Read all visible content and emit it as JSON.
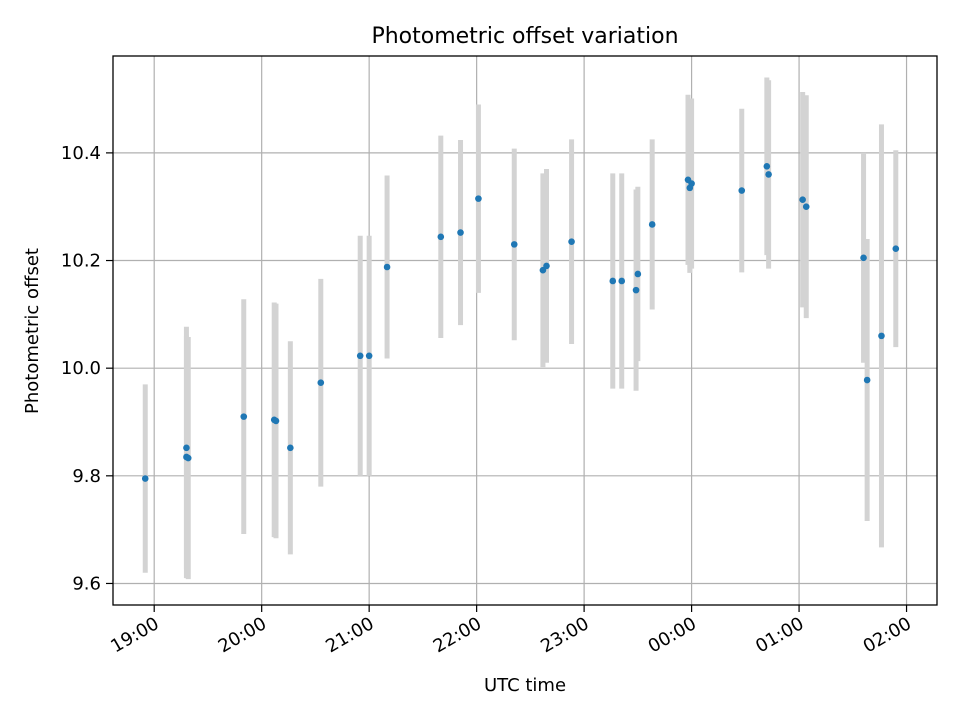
{
  "chart_data": {
    "type": "scatter",
    "title": "Photometric offset variation",
    "xlabel": "UTC time",
    "ylabel": "Photometric offset",
    "xlim": [
      "18:37",
      "02:17"
    ],
    "ylim": [
      9.56,
      10.58
    ],
    "grid": true,
    "x_ticks": [
      "19:00",
      "20:00",
      "21:00",
      "22:00",
      "23:00",
      "00:00",
      "01:00",
      "02:00"
    ],
    "y_ticks": [
      "9.6",
      "9.8",
      "10.0",
      "10.2",
      "10.4"
    ],
    "colors": {
      "marker": "#1f77b4",
      "errorbar": "#d3d3d3",
      "grid": "#b0b0b0"
    },
    "series": [
      {
        "points": [
          {
            "x": "18:55",
            "y": 9.795,
            "err": 0.175
          },
          {
            "x": "19:18",
            "y": 9.852,
            "err": 0.225
          },
          {
            "x": "19:18",
            "y": 9.835,
            "err": 0.225
          },
          {
            "x": "19:19",
            "y": 9.833,
            "err": 0.225
          },
          {
            "x": "19:50",
            "y": 9.91,
            "err": 0.218
          },
          {
            "x": "20:07",
            "y": 9.904,
            "err": 0.218
          },
          {
            "x": "20:08",
            "y": 9.902,
            "err": 0.218
          },
          {
            "x": "20:16",
            "y": 9.852,
            "err": 0.198
          },
          {
            "x": "20:33",
            "y": 9.973,
            "err": 0.193
          },
          {
            "x": "20:55",
            "y": 10.023,
            "err": 0.223
          },
          {
            "x": "21:00",
            "y": 10.023,
            "err": 0.223
          },
          {
            "x": "21:10",
            "y": 10.188,
            "err": 0.17
          },
          {
            "x": "21:40",
            "y": 10.244,
            "err": 0.188
          },
          {
            "x": "21:51",
            "y": 10.252,
            "err": 0.172
          },
          {
            "x": "22:01",
            "y": 10.315,
            "err": 0.175
          },
          {
            "x": "22:21",
            "y": 10.23,
            "err": 0.178
          },
          {
            "x": "22:37",
            "y": 10.182,
            "err": 0.18
          },
          {
            "x": "22:39",
            "y": 10.19,
            "err": 0.18
          },
          {
            "x": "22:53",
            "y": 10.235,
            "err": 0.19
          },
          {
            "x": "23:16",
            "y": 10.162,
            "err": 0.2
          },
          {
            "x": "23:21",
            "y": 10.162,
            "err": 0.2
          },
          {
            "x": "23:29",
            "y": 10.145,
            "err": 0.187
          },
          {
            "x": "23:30",
            "y": 10.175,
            "err": 0.162
          },
          {
            "x": "23:38",
            "y": 10.267,
            "err": 0.158
          },
          {
            "x": "23:58",
            "y": 10.35,
            "err": 0.158
          },
          {
            "x": "23:59",
            "y": 10.335,
            "err": 0.158
          },
          {
            "x": "00:00",
            "y": 10.343,
            "err": 0.158
          },
          {
            "x": "00:28",
            "y": 10.33,
            "err": 0.152
          },
          {
            "x": "00:42",
            "y": 10.375,
            "err": 0.165
          },
          {
            "x": "00:43",
            "y": 10.36,
            "err": 0.175
          },
          {
            "x": "01:02",
            "y": 10.313,
            "err": 0.2
          },
          {
            "x": "01:04",
            "y": 10.3,
            "err": 0.207
          },
          {
            "x": "01:36",
            "y": 10.205,
            "err": 0.195
          },
          {
            "x": "01:38",
            "y": 9.978,
            "err": 0.262
          },
          {
            "x": "01:46",
            "y": 10.06,
            "err": 0.393
          },
          {
            "x": "01:54",
            "y": 10.222,
            "err": 0.183
          }
        ]
      }
    ]
  }
}
